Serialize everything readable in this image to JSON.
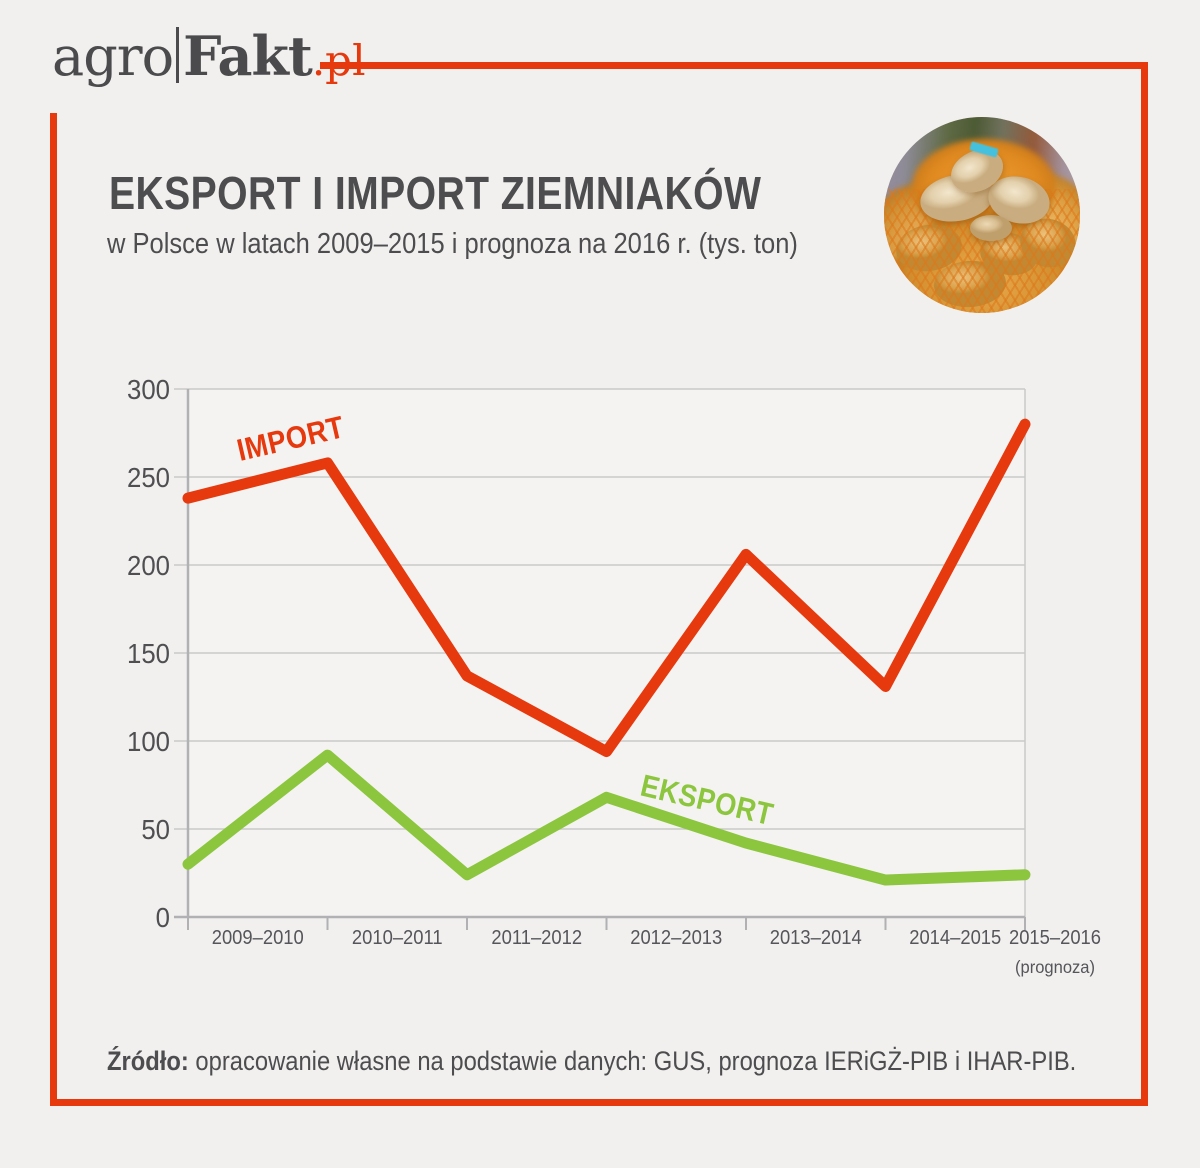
{
  "page": {
    "background": "#f1f0ee",
    "frame_color": "#e7390e"
  },
  "header": {
    "logo": {
      "part1": "agro",
      "part2": "Fakt",
      "suffix": ".pl"
    },
    "title": "EKSPORT I IMPORT ZIEMNIAKÓW",
    "subtitle": "w Polsce w latach 2009–2015 i prognoza na 2016 r. (tys. ton)"
  },
  "footer": {
    "source_label": "Źródło:",
    "source_text": " opracowanie własne na podstawie danych: GUS, prognoza IERiGŻ-PIB i IHAR-PIB."
  },
  "chart_data": {
    "type": "line",
    "title": "EKSPORT I IMPORT ZIEMNIAKÓW",
    "subtitle": "w Polsce w latach 2009–2015 i prognoza na 2016 r. (tys. ton)",
    "unit": "tys. ton",
    "categories": [
      "2009–2010",
      "2010–2011",
      "2011–2012",
      "2012–2013",
      "2013–2014",
      "2014–2015",
      "2015–2016"
    ],
    "last_category_note": "(prognoza)",
    "series": [
      {
        "name": "IMPORT",
        "color": "#e7390e",
        "values": [
          238,
          258,
          137,
          94,
          206,
          131,
          280
        ]
      },
      {
        "name": "EKSPORT",
        "color": "#8cc63e",
        "values": [
          30,
          92,
          24,
          68,
          42,
          21,
          24
        ]
      }
    ],
    "ylim": [
      0,
      300
    ],
    "ytick_step": 50,
    "yticks": [
      0,
      50,
      100,
      150,
      200,
      250,
      300
    ],
    "grid": true,
    "legend": "inline-labels"
  },
  "theme": {
    "grid_color": "#c9c9c9",
    "axis_color": "#b1b1b3",
    "tick_text_color": "#55555a",
    "plot_fill": "#f4f3f1"
  }
}
